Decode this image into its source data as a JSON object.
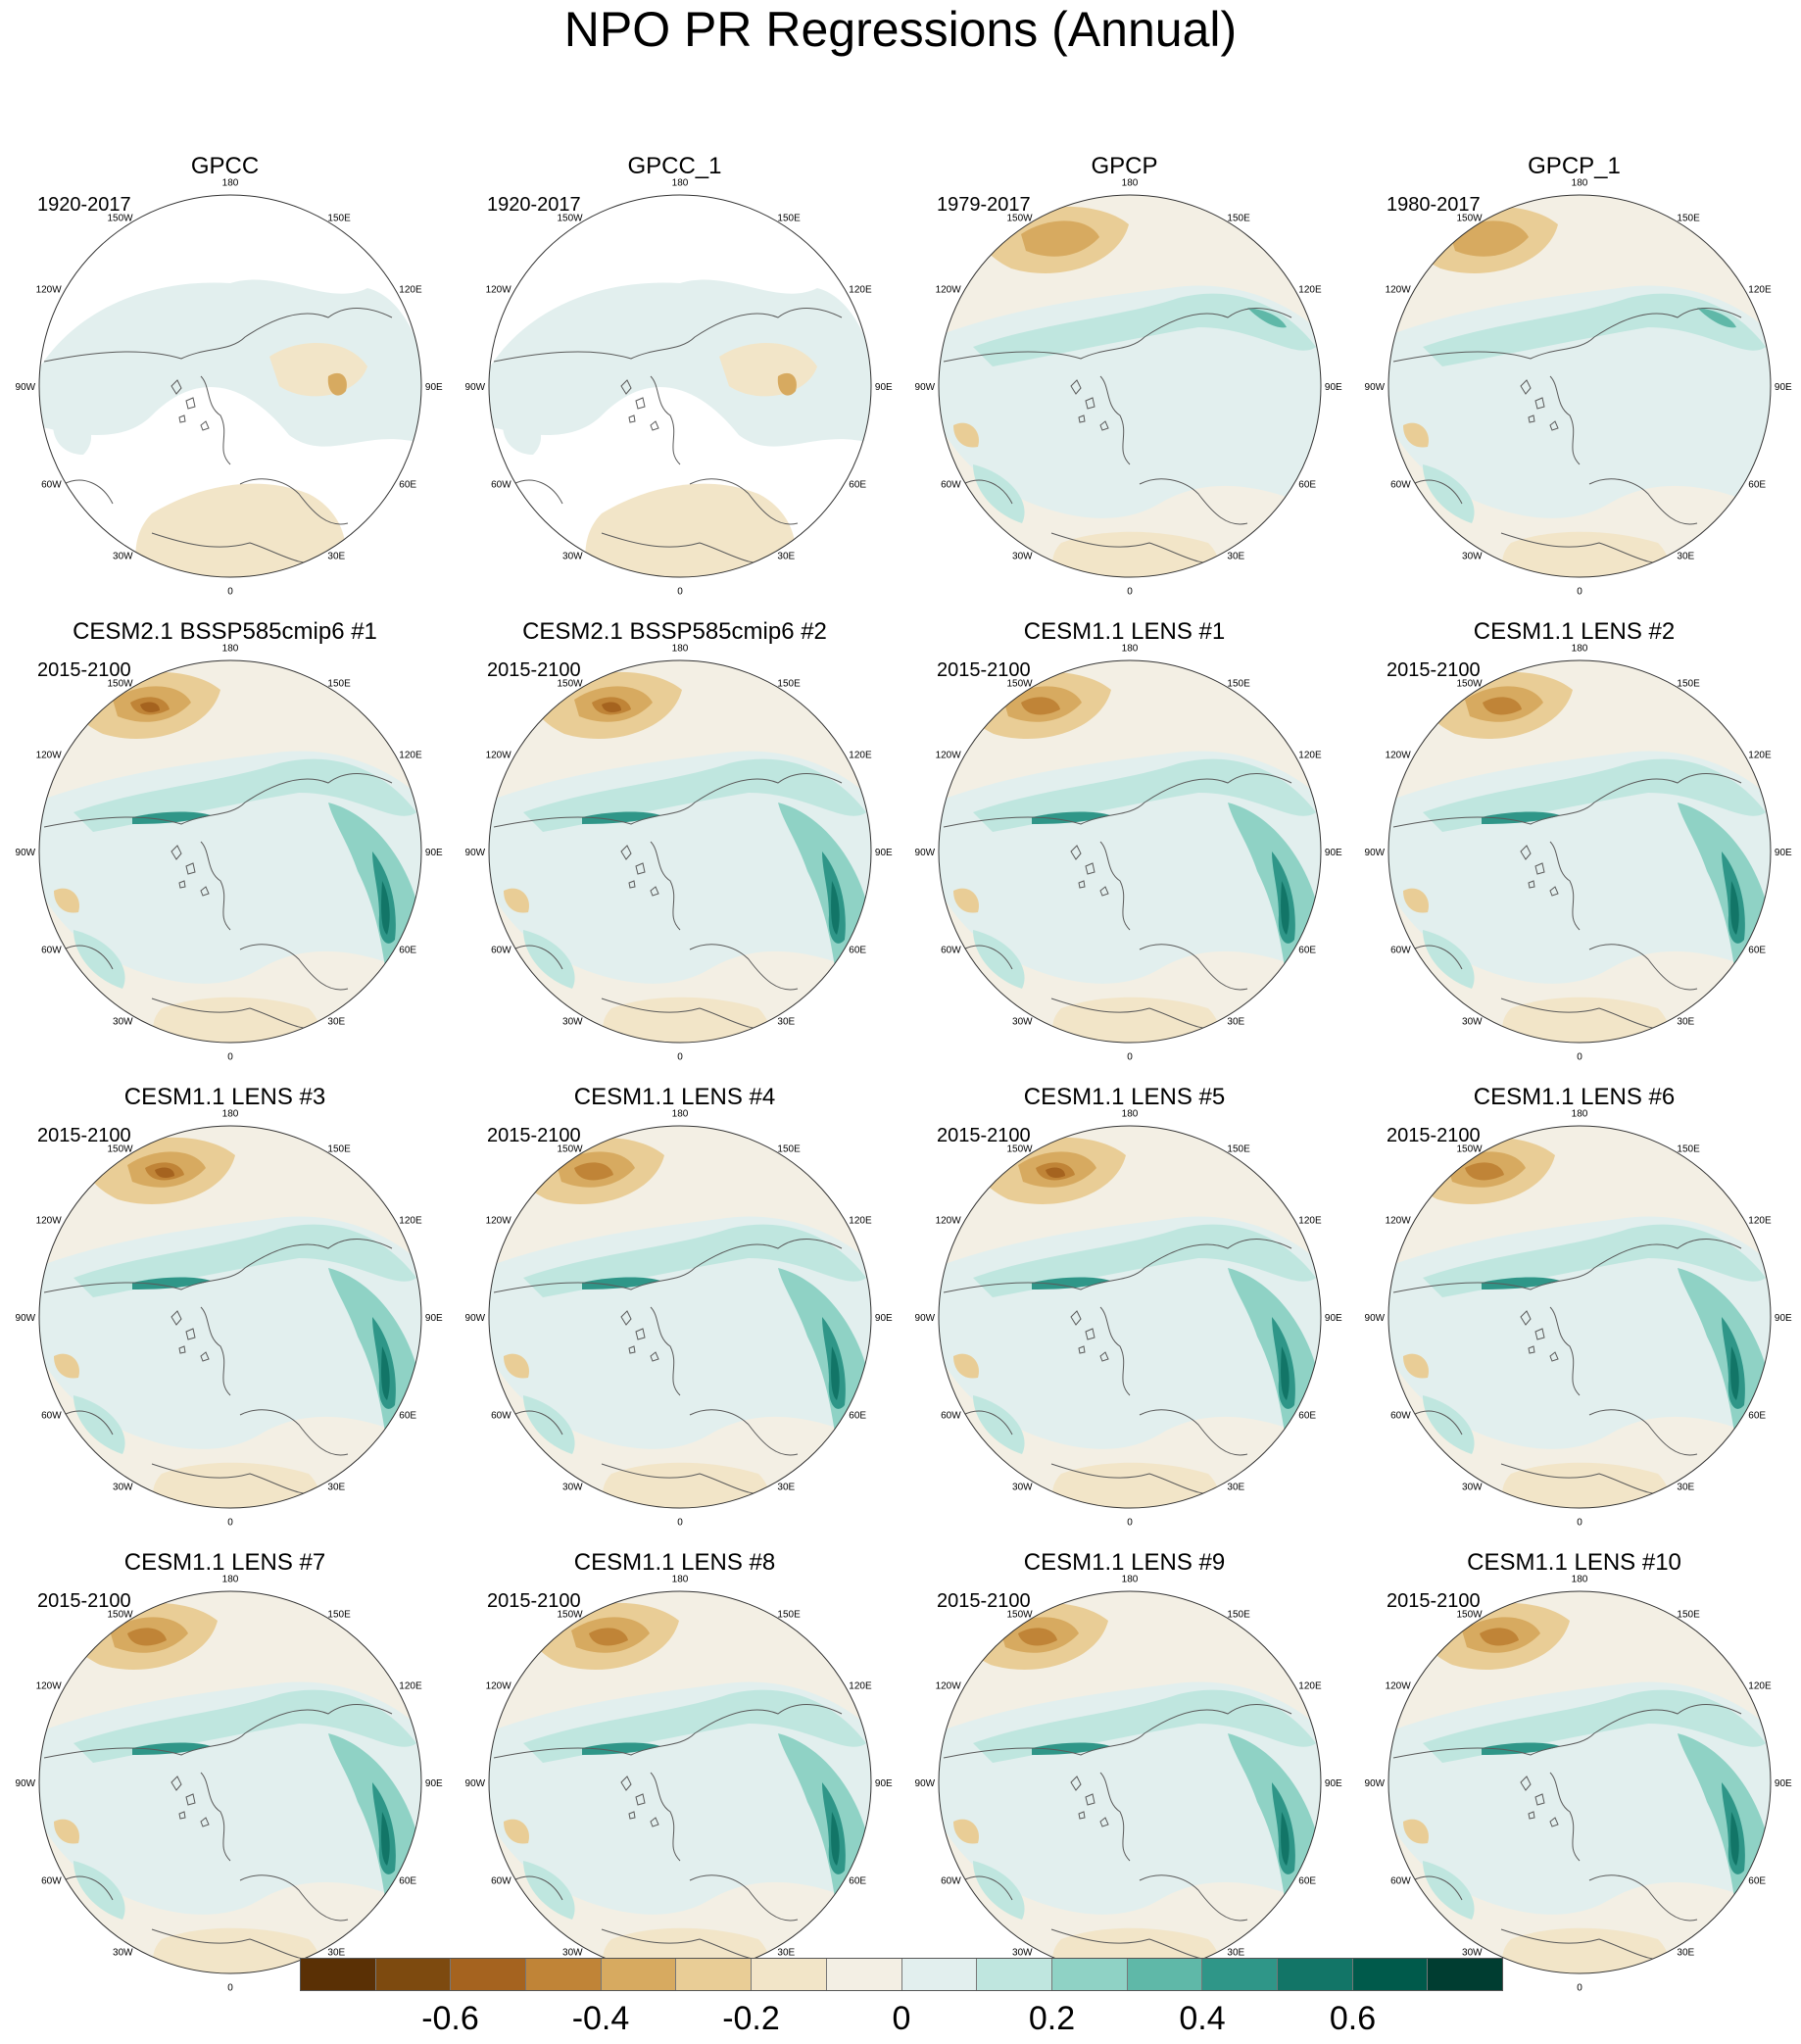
{
  "title": "NPO PR Regressions (Annual)",
  "longitude_labels": {
    "top": "180",
    "p150w": "150W",
    "p120w": "120W",
    "p90w": "90W",
    "p60w": "60W",
    "p30w": "30W",
    "bottom": "0",
    "p30e": "30E",
    "p60e": "60E",
    "p90e": "90E",
    "p120e": "120E",
    "p150e": "150E"
  },
  "colorbar": {
    "colors": [
      "#5a3005",
      "#7d4a0f",
      "#a5631f",
      "#c08437",
      "#d7aa60",
      "#e9cd96",
      "#f2e5c8",
      "#f3efe4",
      "#e2efee",
      "#bfe6df",
      "#8fd2c5",
      "#5fb8a8",
      "#2f9688",
      "#127567",
      "#005a4b",
      "#003d31"
    ],
    "tick_labels": [
      "-0.6",
      "-0.4",
      "-0.2",
      "0",
      "0.2",
      "0.4",
      "0.6"
    ]
  },
  "panels": [
    {
      "title": "GPCC",
      "period": "1920-2017",
      "land_only": true
    },
    {
      "title": "GPCC_1",
      "period": "1920-2017",
      "land_only": true
    },
    {
      "title": "GPCP",
      "period": "1979-2017"
    },
    {
      "title": "GPCP_1",
      "period": "1980-2017"
    },
    {
      "title": "CESM2.1 BSSP585cmip6 #1",
      "period": "2015-2100"
    },
    {
      "title": "CESM2.1 BSSP585cmip6 #2",
      "period": "2015-2100"
    },
    {
      "title": "CESM1.1 LENS #1",
      "period": "2015-2100"
    },
    {
      "title": "CESM1.1 LENS #2",
      "period": "2015-2100"
    },
    {
      "title": "CESM1.1 LENS #3",
      "period": "2015-2100"
    },
    {
      "title": "CESM1.1 LENS #4",
      "period": "2015-2100"
    },
    {
      "title": "CESM1.1 LENS #5",
      "period": "2015-2100"
    },
    {
      "title": "CESM1.1 LENS #6",
      "period": "2015-2100"
    },
    {
      "title": "CESM1.1 LENS #7",
      "period": "2015-2100"
    },
    {
      "title": "CESM1.1 LENS #8",
      "period": "2015-2100"
    },
    {
      "title": "CESM1.1 LENS #9",
      "period": "2015-2100"
    },
    {
      "title": "CESM1.1 LENS #10",
      "period": "2015-2100"
    }
  ]
}
